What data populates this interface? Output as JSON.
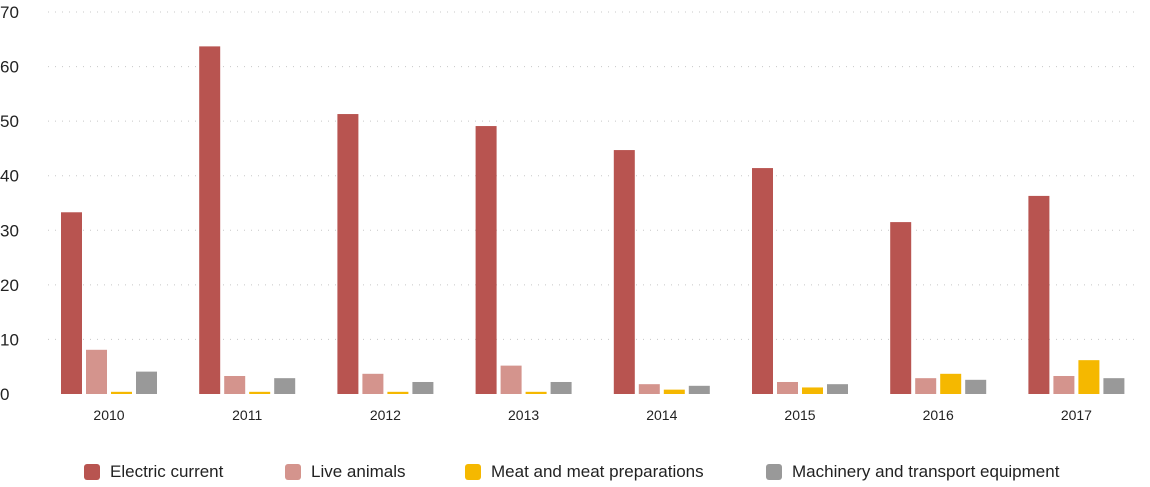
{
  "chart_data": {
    "type": "bar",
    "title": "",
    "xlabel": "",
    "ylabel": "",
    "ylim": [
      0,
      70
    ],
    "yticks": [
      0,
      10,
      20,
      30,
      40,
      50,
      60,
      70
    ],
    "grid": true,
    "legend_position": "bottom",
    "categories": [
      "2010",
      "2011",
      "2012",
      "2013",
      "2014",
      "2015",
      "2016",
      "2017"
    ],
    "series": [
      {
        "name": "Electric current",
        "color": "#b85450",
        "values": [
          33.3,
          63.7,
          51.3,
          49.1,
          44.7,
          41.4,
          31.5,
          36.3
        ]
      },
      {
        "name": "Live animals",
        "color": "#d4948d",
        "values": [
          8.1,
          3.3,
          3.7,
          5.2,
          1.8,
          2.2,
          2.9,
          3.3
        ]
      },
      {
        "name": "Meat and meat preparations",
        "color": "#f5b800",
        "values": [
          0.4,
          0.4,
          0.4,
          0.4,
          0.8,
          1.2,
          3.7,
          6.2
        ]
      },
      {
        "name": "Machinery and transport equipment",
        "color": "#999999",
        "values": [
          4.1,
          2.9,
          2.2,
          2.2,
          1.5,
          1.8,
          2.6,
          2.9
        ]
      }
    ]
  }
}
